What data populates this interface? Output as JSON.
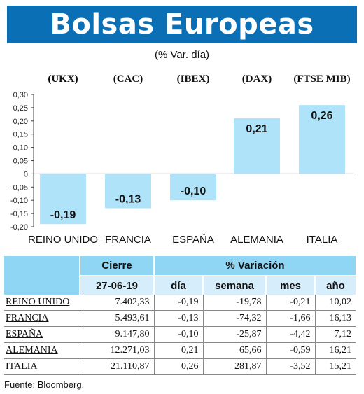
{
  "header": {
    "title": "Bolsas Europeas",
    "subtitle": "(% Var. día)"
  },
  "chart_data": {
    "type": "bar",
    "ylim": [
      -0.2,
      0.3
    ],
    "yticks": [
      "0,30",
      "0,25",
      "0,20",
      "0,15",
      "0,10",
      "0,05",
      "0",
      "-0,05",
      "-0,10",
      "-0,15",
      "-0,20"
    ],
    "yticks_values": [
      0.3,
      0.25,
      0.2,
      0.15,
      0.1,
      0.05,
      0,
      -0.05,
      -0.1,
      -0.15,
      -0.2
    ],
    "index_codes": [
      "(UKX)",
      "(CAC)",
      "(IBEX)",
      "(DAX)",
      "(FTSE MIB)"
    ],
    "categories": [
      "REINO UNIDO",
      "FRANCIA",
      "ESPAÑA",
      "ALEMANIA",
      "ITALIA"
    ],
    "values": [
      -0.19,
      -0.13,
      -0.1,
      0.21,
      0.26
    ],
    "value_labels": [
      "-0,19",
      "-0,13",
      "-0,10",
      "0,21",
      "0,26"
    ],
    "bar_color": "#aee3fa",
    "grid": false
  },
  "table": {
    "group_headers": [
      "Cierre",
      "% Variación"
    ],
    "date": "27-06-19",
    "columns": [
      "día",
      "semana",
      "mes",
      "año"
    ],
    "rows": [
      {
        "country": "REINO UNIDO",
        "cierre": "7.402,33",
        "dia": "-0,19",
        "semana": "-19,78",
        "mes": "-0,21",
        "ano": "10,02"
      },
      {
        "country": "FRANCIA",
        "cierre": "5.493,61",
        "dia": "-0,13",
        "semana": "-74,32",
        "mes": "-1,66",
        "ano": "16,13"
      },
      {
        "country": "ESPAÑA",
        "cierre": "9.147,80",
        "dia": "-0,10",
        "semana": "-25,87",
        "mes": "-4,42",
        "ano": "7,12"
      },
      {
        "country": "ALEMANIA",
        "cierre": "12.271,03",
        "dia": "0,21",
        "semana": "65,66",
        "mes": "-0,59",
        "ano": "16,21"
      },
      {
        "country": "ITALIA",
        "cierre": "21.110,87",
        "dia": "0,26",
        "semana": "281,87",
        "mes": "-3,52",
        "ano": "15,21"
      }
    ]
  },
  "source": "Fuente: Bloomberg."
}
